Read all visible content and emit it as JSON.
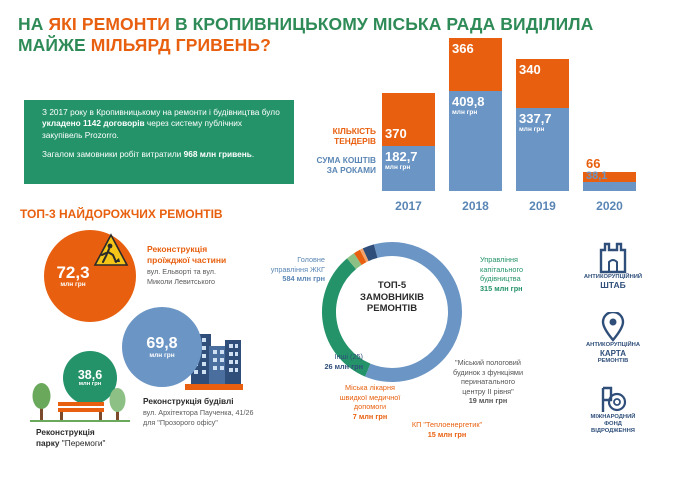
{
  "header": {
    "line1_prefix": "НА",
    "line1_highlight": "ЯКІ РЕМОНТИ",
    "line1_suffix": "В КРОПИВНИЦЬКОМУ МІСЬКА РАДА ВИДІЛИЛА",
    "line2_prefix": "МАЙЖЕ",
    "line2_highlight": "МІЛЬЯРД ГРИВЕНЬ?"
  },
  "summary": {
    "p1_a": "З 2017 року в Кропивницькому на ремонти і будівництва було",
    "p1_bold": "укладено 1142 договорів",
    "p1_b": "через систему публічних закупівель Prozorro.",
    "p2_a": "Загалом замовники робіт витратили",
    "p2_bold": "968 млн гривень",
    "p2_b": "."
  },
  "chart_data": {
    "type": "bar",
    "categories": [
      "2017",
      "2018",
      "2019",
      "2020"
    ],
    "series": [
      {
        "name": "КІЛЬКІСТЬ ТЕНДЕРІВ",
        "values": [
          370,
          366,
          340,
          66
        ],
        "color": "#e8600f"
      },
      {
        "name": "СУМА КОШТІВ ЗА РОКАМИ",
        "values": [
          182.7,
          409.8,
          337.7,
          38.1
        ],
        "unit": "млн грн",
        "color": "#6b95c4"
      }
    ],
    "labels_tenders": [
      "370",
      "366",
      "340",
      "66"
    ],
    "labels_sums": [
      "182,7",
      "409,8",
      "337,7",
      "38,1"
    ],
    "unit": "млн грн",
    "legend_tenders_1": "КІЛЬКІСТЬ",
    "legend_tenders_2": "ТЕНДЕРІВ",
    "legend_sums_1": "СУМА КОШТІВ",
    "legend_sums_2": "ЗА РОКАМИ"
  },
  "top3": {
    "title": "ТОП-3 НАЙДОРОЖЧИХ РЕМОНТІВ",
    "items": [
      {
        "value": "72,3",
        "unit": "млн грн",
        "title_1": "Реконструкція",
        "title_2": "проїжджої частини",
        "desc_1": "вул. Ельворті та вул.",
        "desc_2": "Миколи Левитського"
      },
      {
        "value": "69,8",
        "unit": "млн грн",
        "title": "Реконструкція будівлі",
        "desc_1": "вул. Архітектора Паученка, 41/26",
        "desc_2": "для \"Прозорого офісу\""
      },
      {
        "value": "38,6",
        "unit": "млн грн",
        "title_1": "Реконструкція",
        "title_2a": "парку",
        "title_2b": "\"Перемоги\""
      }
    ]
  },
  "donut": {
    "center_1": "ТОП-5",
    "center_2": "ЗАМОВНИКІВ",
    "center_3": "РЕМОНТІВ",
    "segments": [
      {
        "label_1": "Головне",
        "label_2": "управління ЖКГ",
        "value": "584 млн грн",
        "amount": 584,
        "color": "#6b95c4"
      },
      {
        "label_1": "Управління",
        "label_2": "капітального",
        "label_3": "будівництва",
        "value": "315 млн грн",
        "amount": 315,
        "color": "#24936a"
      },
      {
        "label_1": "\"Міський пологовий",
        "label_2": "будинок з функціями",
        "label_3": "перинатального",
        "label_4": "центру ІІ рівня\"",
        "value": "19 млн грн",
        "amount": 19,
        "color": "#8cc084"
      },
      {
        "label_1": "КП \"Теплоенергетик\"",
        "value": "15 млн грн",
        "amount": 15,
        "color": "#e8600f"
      },
      {
        "label_1": "Міська лікарня",
        "label_2": "швидкої медичної",
        "label_3": "допомоги",
        "value": "7 млн грн",
        "amount": 7,
        "color": "#f3a36a"
      },
      {
        "label_1": "Інші (25)",
        "value": "26 млн грн",
        "amount": 26,
        "color": "#2f4f7a"
      }
    ]
  },
  "logos": {
    "shtab_1": "АНТИКОРУПЦІЙНИЙ",
    "shtab_2": "ШТАБ",
    "karta_1": "АНТИКОРУПЦІЙНА",
    "karta_2": "КАРТА",
    "karta_3": "РЕМОНТІВ",
    "fond_1": "МІЖНАРОДНИЙ",
    "fond_2": "ФОНД",
    "fond_3": "ВІДРОДЖЕННЯ"
  }
}
